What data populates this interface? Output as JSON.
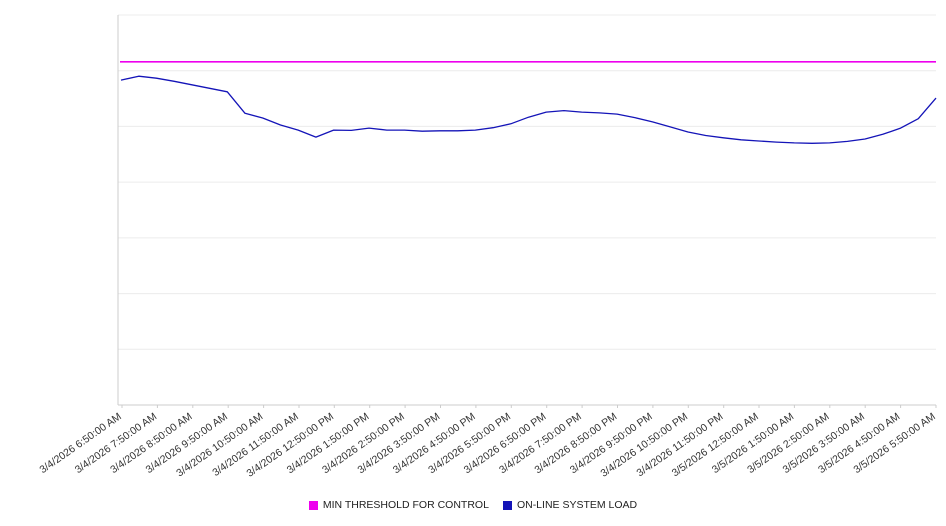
{
  "legend": [
    {
      "label": "MIN THRESHOLD FOR CONTROL",
      "color": "#ee00ee"
    },
    {
      "label": "ON-LINE SYSTEM LOAD",
      "color": "#1414b8"
    }
  ],
  "chart_data": {
    "type": "line",
    "title": "",
    "xlabel": "",
    "ylabel": "",
    "grid": "horizontal",
    "legend_position": "bottom-center",
    "x_tick_labels": [
      "3/4/2026 6:50:00 AM",
      "3/4/2026 7:50:00 AM",
      "3/4/2026 8:50:00 AM",
      "3/4/2026 9:50:00 AM",
      "3/4/2026 10:50:00 AM",
      "3/4/2026 11:50:00 AM",
      "3/4/2026 12:50:00 PM",
      "3/4/2026 1:50:00 PM",
      "3/4/2026 2:50:00 PM",
      "3/4/2026 3:50:00 PM",
      "3/4/2026 4:50:00 PM",
      "3/4/2026 5:50:00 PM",
      "3/4/2026 6:50:00 PM",
      "3/4/2026 7:50:00 PM",
      "3/4/2026 8:50:00 PM",
      "3/4/2026 9:50:00 PM",
      "3/4/2026 10:50:00 PM",
      "3/4/2026 11:50:00 PM",
      "3/5/2026 12:50:00 AM",
      "3/5/2026 1:50:00 AM",
      "3/5/2026 2:50:00 AM",
      "3/5/2026 3:50:00 AM",
      "3/5/2026 4:50:00 AM",
      "3/5/2026 5:50:00 AM"
    ],
    "x_range": [
      "3/4/2026 6:50:00 AM",
      "3/5/2026 5:50:00 AM"
    ],
    "y_axis": {
      "tick_labels_visible": false,
      "normalized_scale": [
        0,
        100
      ],
      "gridline_divisions": 7
    },
    "series": [
      {
        "name": "MIN THRESHOLD FOR CONTROL",
        "type": "threshold",
        "color": "#ee00ee",
        "value": 88
      },
      {
        "name": "ON-LINE SYSTEM LOAD",
        "type": "line",
        "color": "#1414b8",
        "sample_interval_minutes": 30,
        "values": [
          83.3,
          84.3,
          83.8,
          83.0,
          82.1,
          81.2,
          80.3,
          74.8,
          73.6,
          71.8,
          70.5,
          68.7,
          70.5,
          70.4,
          71.0,
          70.5,
          70.5,
          70.2,
          70.3,
          70.3,
          70.5,
          71.1,
          72.1,
          73.8,
          75.1,
          75.5,
          75.1,
          74.9,
          74.6,
          73.7,
          72.6,
          71.3,
          70.0,
          69.1,
          68.5,
          68.0,
          67.7,
          67.4,
          67.2,
          67.1,
          67.2,
          67.6,
          68.2,
          69.4,
          71.0,
          73.4,
          78.7
        ]
      }
    ],
    "colors": {
      "gridline": "#ececec",
      "axis": "#cccccc",
      "tick_label": "#333333",
      "background": "#ffffff"
    }
  }
}
